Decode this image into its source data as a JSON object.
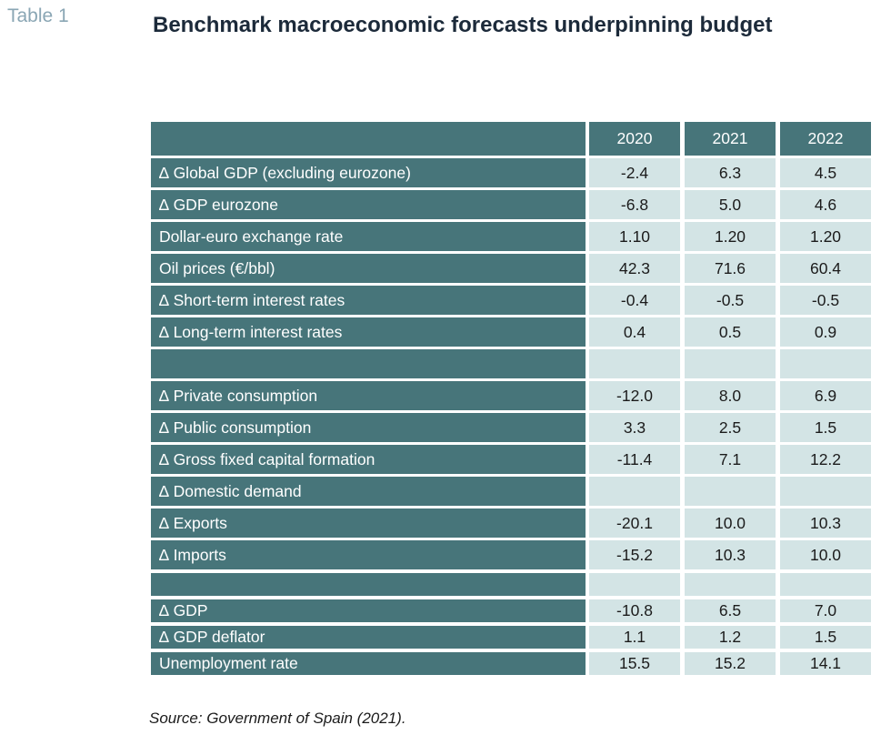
{
  "table_label": "Table 1",
  "title": "Benchmark macroeconomic forecasts underpinning budget",
  "columns": [
    "2020",
    "2021",
    "2022"
  ],
  "rows": [
    {
      "label": "∆ Global GDP (excluding eurozone)",
      "values": [
        "-2.4",
        "6.3",
        "4.5"
      ]
    },
    {
      "label": "∆ GDP eurozone",
      "values": [
        "-6.8",
        "5.0",
        "4.6"
      ]
    },
    {
      "label": "Dollar-euro exchange rate",
      "values": [
        "1.10",
        "1.20",
        "1.20"
      ]
    },
    {
      "label": "Oil prices (€/bbl)",
      "values": [
        "42.3",
        "71.6",
        "60.4"
      ]
    },
    {
      "label": "∆ Short-term interest rates",
      "values": [
        "-0.4",
        "-0.5",
        "-0.5"
      ]
    },
    {
      "label": "∆ Long-term interest rates",
      "values": [
        "0.4",
        "0.5",
        "0.9"
      ]
    },
    {
      "label": "",
      "values": [
        "",
        "",
        ""
      ]
    },
    {
      "label": "∆ Private consumption",
      "values": [
        "-12.0",
        "8.0",
        "6.9"
      ]
    },
    {
      "label": "∆ Public consumption",
      "values": [
        "3.3",
        "2.5",
        "1.5"
      ]
    },
    {
      "label": "∆ Gross fixed capital formation",
      "values": [
        "-11.4",
        "7.1",
        "12.2"
      ]
    },
    {
      "label": "∆ Domestic demand",
      "values": [
        "",
        "",
        ""
      ]
    },
    {
      "label": "∆ Exports",
      "values": [
        "-20.1",
        "10.0",
        "10.3"
      ]
    },
    {
      "label": "∆ Imports",
      "values": [
        "-15.2",
        "10.3",
        "10.0"
      ]
    },
    {
      "label": "",
      "values": [
        "",
        "",
        ""
      ]
    },
    {
      "label": "∆ GDP",
      "values": [
        "-10.8",
        "6.5",
        "7.0"
      ]
    },
    {
      "label": "∆ GDP deflator",
      "values": [
        "1.1",
        "1.2",
        "1.5"
      ]
    },
    {
      "label": "Unemployment rate",
      "values": [
        "15.5",
        "15.2",
        "14.1"
      ]
    }
  ],
  "source": "Source: Government of Spain (2021).",
  "colors": {
    "label_bg": "#47757a",
    "value_bg": "#d3e4e5",
    "title": "#1c2a3a",
    "table_label": "#8aa6b4"
  }
}
